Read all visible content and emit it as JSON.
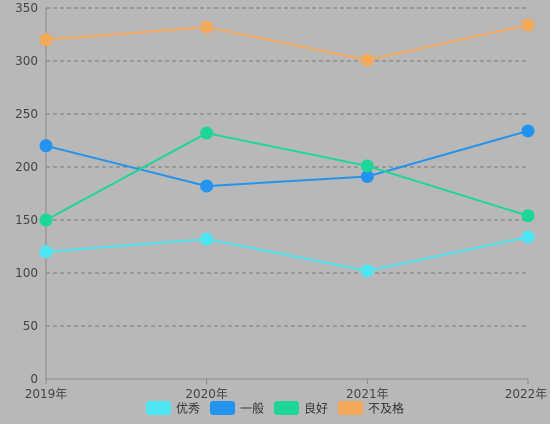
{
  "chart_data": {
    "type": "line",
    "categories": [
      "2019年",
      "2020年",
      "2021年",
      "2022年"
    ],
    "ylim": [
      0,
      350
    ],
    "yticks": [
      0,
      50,
      100,
      150,
      200,
      250,
      300,
      350
    ],
    "grid": true,
    "legend_position": "bottom",
    "series": [
      {
        "name": "优秀",
        "color": "#4ee6f5",
        "values": [
          120,
          132,
          102,
          134
        ]
      },
      {
        "name": "一般",
        "color": "#2393f0",
        "values": [
          220,
          182,
          191,
          234
        ]
      },
      {
        "name": "良好",
        "color": "#1ed69a",
        "values": [
          150,
          232,
          201,
          154
        ]
      },
      {
        "name": "不及格",
        "color": "#f4a85a",
        "values": [
          320,
          332,
          301,
          334
        ]
      }
    ],
    "colors": {
      "background": "#b8b8b8",
      "grid": "#7a7a7a",
      "axis": "#8a8a8a",
      "tick_text": "#444444"
    }
  }
}
